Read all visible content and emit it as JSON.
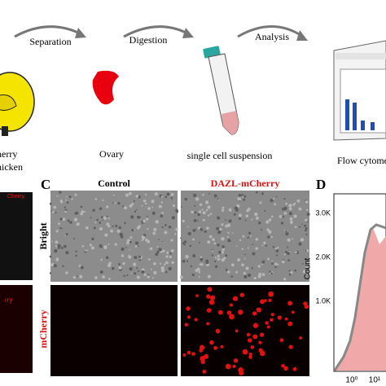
{
  "top": {
    "steps": [
      "Separation",
      "Digestion",
      "Analysis"
    ],
    "labels": {
      "chicken": [
        "herry",
        "hicken"
      ],
      "ovary": "Ovary",
      "suspension": "single cell suspension",
      "cytometer": "Flow cytometric"
    }
  },
  "panel_b": {
    "labels": [
      "Cherry",
      "rry"
    ]
  },
  "panel_c": {
    "letter": "C",
    "columns": [
      "Control",
      "DAZL-mCherry"
    ],
    "rows": [
      "Bright",
      "mCherry"
    ]
  },
  "panel_d": {
    "letter": "D",
    "y_axis_label": "Count",
    "y_ticks": [
      "3.0K",
      "2.0K",
      "1.0K"
    ],
    "x_ticks": [
      "10⁰",
      "10¹"
    ]
  }
}
